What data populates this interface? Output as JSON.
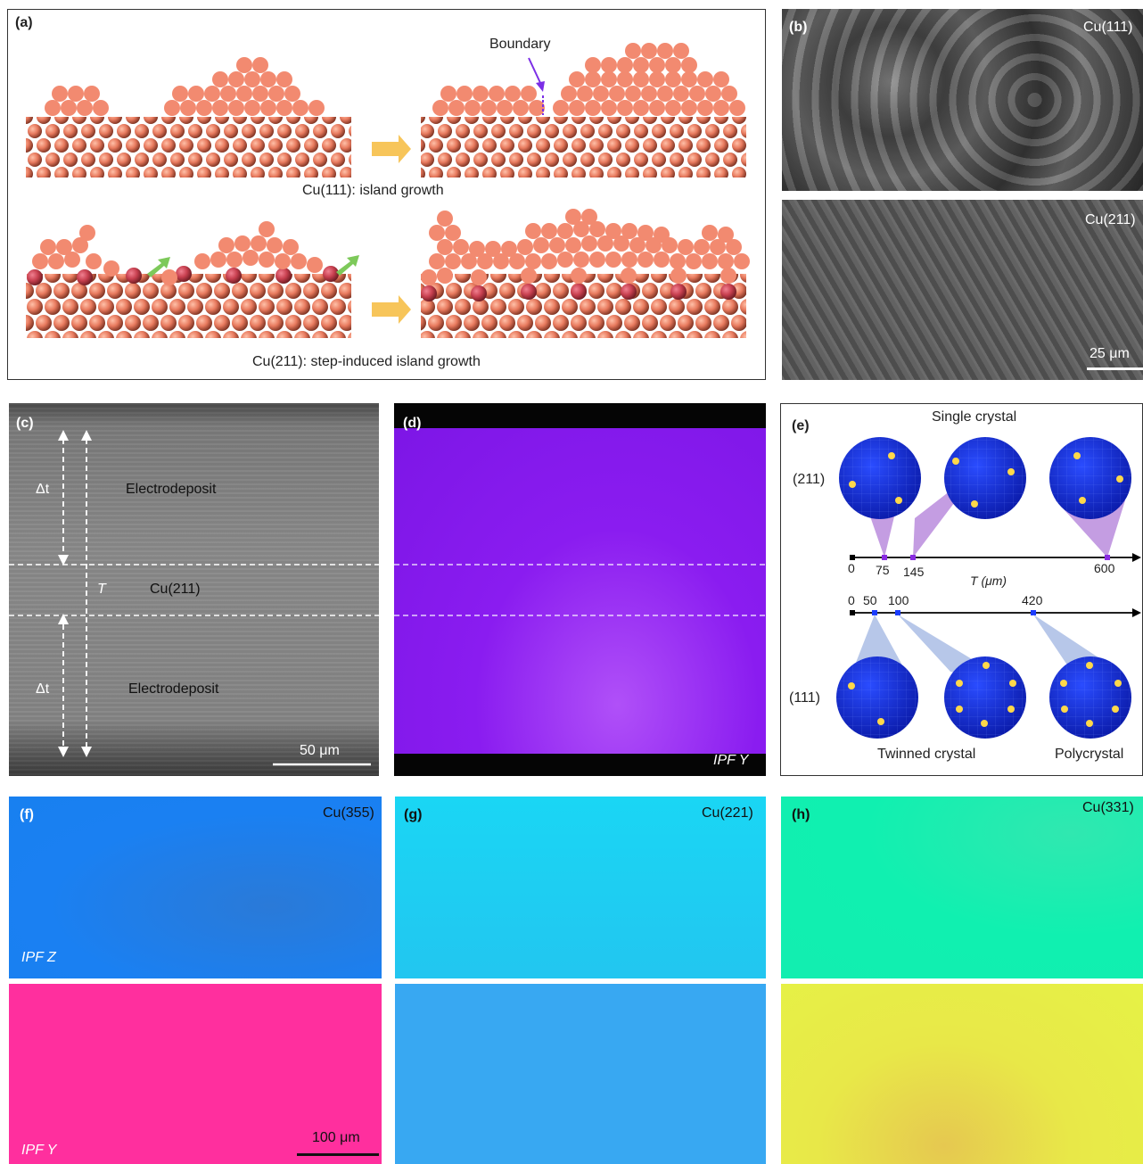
{
  "panel_a": {
    "label": "(a)",
    "boundary": "Boundary",
    "caption_top": "Cu(111): island growth",
    "caption_bottom": "Cu(211): step-induced island growth"
  },
  "panel_b": {
    "label": "(b)",
    "top_tag": "Cu(111)",
    "bottom_tag": "Cu(211)",
    "scale": "25 μm"
  },
  "panel_c": {
    "label": "(c)",
    "dt_top": "Δt",
    "dt_bottom": "Δt",
    "electrodeposit_top": "Electrodeposit",
    "electrodeposit_bottom": "Electrodeposit",
    "T": "T",
    "layer": "Cu(211)",
    "scale": "50 μm"
  },
  "panel_d": {
    "label": "(d)",
    "tag": "IPF Y"
  },
  "panel_e": {
    "label": "(e)",
    "single_crystal": "Single crystal",
    "row211": "(211)",
    "row111": "(111)",
    "axis_label": "T (μm)",
    "top_ticks": [
      "0",
      "75",
      "145",
      "600"
    ],
    "bottom_ticks": [
      "0",
      "50",
      "100",
      "420"
    ],
    "twinned": "Twinned crystal",
    "polycrystal": "Polycrystal"
  },
  "panel_f": {
    "label": "(f)",
    "tag": "Cu(355)",
    "ipf_z": "IPF Z",
    "ipf_y": "IPF Y",
    "scale": "100 μm"
  },
  "panel_g": {
    "label": "(g)",
    "tag": "Cu(221)"
  },
  "panel_h": {
    "label": "(h)",
    "tag": "Cu(331)"
  },
  "colors": {
    "copper": "#f08a6e",
    "copper_dark": "#c95d45",
    "arrow_yellow": "#f7c55a",
    "arrow_green": "#7dc95a",
    "boundary_purple": "#7b2ee6",
    "ipf_d": "#8a1cf0",
    "f_top": "#1a7ff0",
    "f_bottom": "#ff2f9e",
    "g_top": "#1fd0f2",
    "g_bottom": "#38a8f2",
    "h_top": "#10f0b8",
    "h_bottom": "#e8f048"
  }
}
